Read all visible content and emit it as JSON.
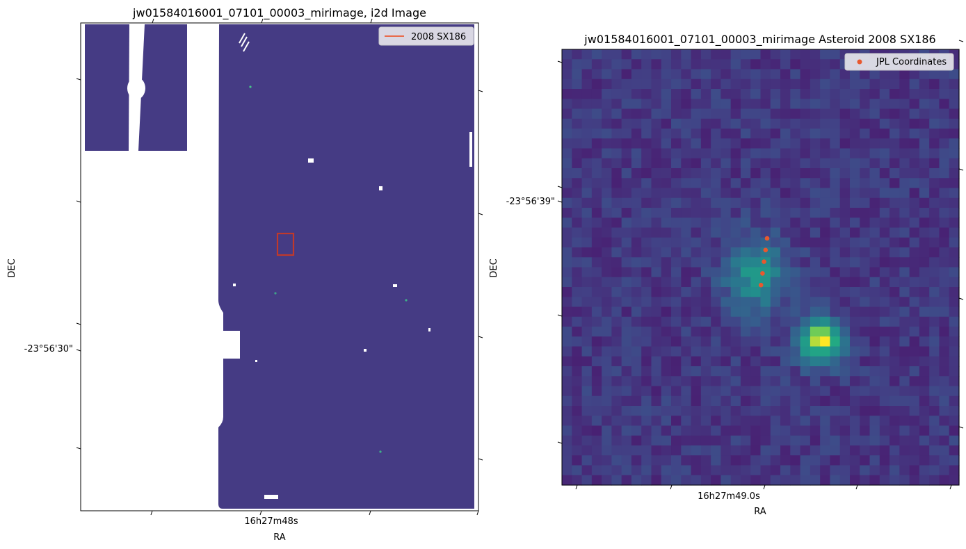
{
  "chart_data": [
    {
      "type": "heatmap",
      "title": "jw01584016001_07101_00003_mirimage,  i2d Image",
      "xlabel": "RA",
      "ylabel": "DEC",
      "x_tick_labels": [
        "16h27m48s"
      ],
      "y_tick_labels": [
        "-23°56'30\""
      ],
      "legend": {
        "placement": "top-right",
        "entries": [
          {
            "label": "2008 SX186",
            "kind": "line",
            "color": "#e8694a"
          }
        ]
      },
      "colormap": "viridis",
      "background_level_color": "#453b84",
      "annotation": {
        "kind": "rectangle",
        "color": "#c0392b",
        "meaning": "2008 SX186 cutout region"
      },
      "grid": false
    },
    {
      "type": "heatmap",
      "title": "jw01584016001_07101_00003_mirimage Asteroid 2008 SX186",
      "xlabel": "RA",
      "ylabel": "DEC",
      "x_tick_labels": [
        "16h27m49.0s"
      ],
      "y_tick_labels": [
        "-23°56'39\""
      ],
      "legend": {
        "placement": "top-right",
        "entries": [
          {
            "label": "JPL Coordinates",
            "kind": "scatter",
            "color": "#e8582f"
          }
        ]
      },
      "colormap": "viridis",
      "jpl_point_count": 5,
      "grid": false
    }
  ],
  "colors": {
    "jpl_points": "#e8582f",
    "legend_line": "#e8694a",
    "box": "#c0392b",
    "frame": "#000000"
  }
}
